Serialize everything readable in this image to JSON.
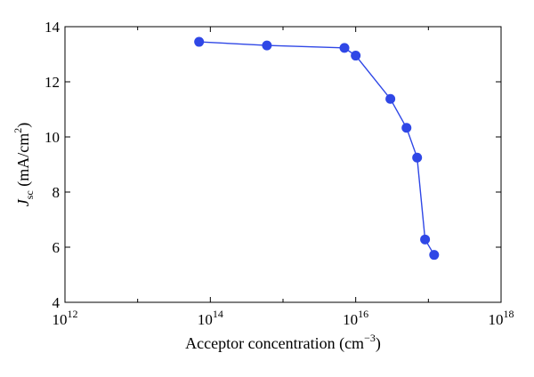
{
  "chart_data": {
    "type": "scatter",
    "xscale": "log",
    "yscale": "linear",
    "xlim": [
      1000000000000.0,
      1e+18
    ],
    "ylim": [
      4,
      14
    ],
    "grid": false,
    "legend": "none",
    "xlabel": {
      "base": "Acceptor concentration (cm",
      "sup": "−3",
      "tail": ")"
    },
    "ylabel": {
      "italic": "J",
      "sub": "sc",
      "mid": " (mA/cm",
      "sup": "2",
      "tail": ")"
    },
    "xticks": [
      {
        "value": 1000000000000.0,
        "base": "10",
        "exp": "12"
      },
      {
        "value": 100000000000000.0,
        "base": "10",
        "exp": "14"
      },
      {
        "value": 1e+16,
        "base": "10",
        "exp": "16"
      },
      {
        "value": 1e+18,
        "base": "10",
        "exp": "18"
      }
    ],
    "yticks": [
      4,
      6,
      8,
      10,
      12,
      14
    ],
    "series": [
      {
        "color": "#2f47e6",
        "marker": "circle",
        "line": true,
        "x": [
          70000000000000.0,
          600000000000000.0,
          7000000000000000.0,
          1e+16,
          3e+16,
          5e+16,
          7e+16,
          9e+16,
          1.2e+17
        ],
        "y": [
          13.45,
          13.32,
          13.23,
          12.95,
          11.38,
          10.33,
          9.25,
          6.28,
          5.72
        ]
      }
    ]
  }
}
